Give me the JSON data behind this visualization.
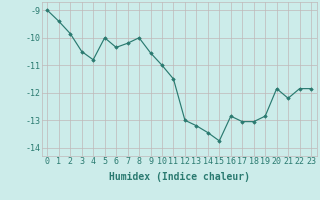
{
  "x": [
    0,
    1,
    2,
    3,
    4,
    5,
    6,
    7,
    8,
    9,
    10,
    11,
    12,
    13,
    14,
    15,
    16,
    17,
    18,
    19,
    20,
    21,
    22,
    23
  ],
  "y": [
    -9.0,
    -9.4,
    -9.85,
    -10.5,
    -10.8,
    -10.0,
    -10.35,
    -10.2,
    -10.0,
    -10.55,
    -11.0,
    -11.5,
    -13.0,
    -13.2,
    -13.45,
    -13.75,
    -12.85,
    -13.05,
    -13.05,
    -12.85,
    -11.85,
    -12.2,
    -11.85,
    -11.85
  ],
  "line_color": "#2a7a70",
  "marker": "D",
  "marker_size": 1.8,
  "bg_color": "#ccecea",
  "grid_color": "#c0b8b8",
  "xlabel": "Humidex (Indice chaleur)",
  "xlim": [
    -0.5,
    23.5
  ],
  "ylim": [
    -14.3,
    -8.7
  ],
  "yticks": [
    -9,
    -10,
    -11,
    -12,
    -13,
    -14
  ],
  "xticks": [
    0,
    1,
    2,
    3,
    4,
    5,
    6,
    7,
    8,
    9,
    10,
    11,
    12,
    13,
    14,
    15,
    16,
    17,
    18,
    19,
    20,
    21,
    22,
    23
  ],
  "tick_color": "#2a7a70",
  "label_fontsize": 6.0,
  "xlabel_fontsize": 7.0
}
